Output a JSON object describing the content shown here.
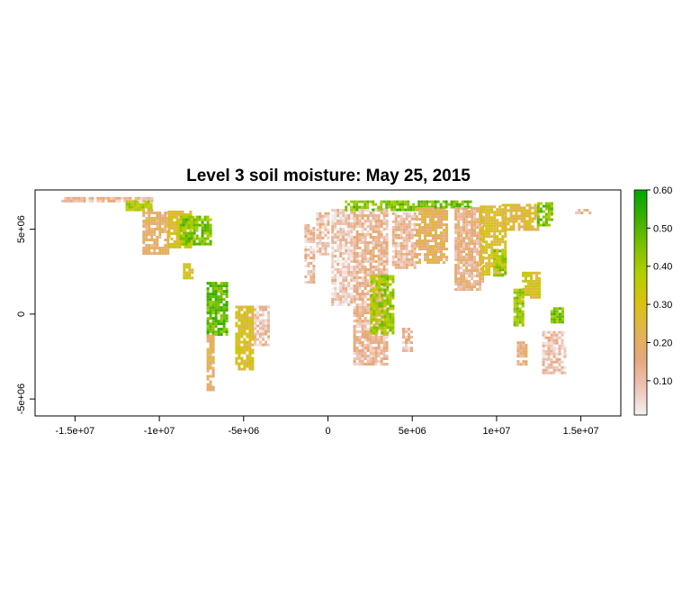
{
  "title": "Level 3 soil moisture: May 25, 2015",
  "x_axis": {
    "ticks": [
      {
        "value": -15000000,
        "label": "-1.5e+07"
      },
      {
        "value": -10000000,
        "label": "-1e+07"
      },
      {
        "value": -5000000,
        "label": "-5e+06"
      },
      {
        "value": 0,
        "label": "0"
      },
      {
        "value": 5000000,
        "label": "5e+06"
      },
      {
        "value": 10000000,
        "label": "1e+07"
      },
      {
        "value": 15000000,
        "label": "1.5e+07"
      }
    ],
    "range": [
      -17367530,
      17367530
    ]
  },
  "y_axis": {
    "ticks": [
      {
        "value": 5000000,
        "label": "5e+06"
      },
      {
        "value": 0,
        "label": "0"
      },
      {
        "value": -5000000,
        "label": "-5e+06"
      }
    ],
    "range": [
      -6000000,
      7314540
    ]
  },
  "legend": {
    "min": 0.01,
    "max": 0.6,
    "ticks": [
      {
        "value": 0.1,
        "label": "0.10"
      },
      {
        "value": 0.2,
        "label": "0.20"
      },
      {
        "value": 0.3,
        "label": "0.30"
      },
      {
        "value": 0.4,
        "label": "0.40"
      },
      {
        "value": 0.5,
        "label": "0.50"
      },
      {
        "value": 0.6,
        "label": "0.60"
      }
    ],
    "colors": [
      "#F2F2F2",
      "#EDC3B3",
      "#E6A77D",
      "#E2B450",
      "#D9C210",
      "#B3CF00",
      "#7DC000",
      "#3DAF00",
      "#00A600"
    ]
  },
  "swaths": [
    {
      "x": [
        -15800000.0,
        -10500000.0
      ],
      "y": [
        6700000.0,
        6900000.0
      ],
      "moisture": 0.12
    },
    {
      "x": [
        -12000000.0,
        -10500000.0
      ],
      "y": [
        6200000.0,
        6700000.0
      ],
      "moisture": 0.38
    },
    {
      "x": [
        -11000000.0,
        -9500000.0
      ],
      "y": [
        3500000.0,
        6200000.0
      ],
      "moisture": 0.18
    },
    {
      "x": [
        -9500000.0,
        -8000000.0
      ],
      "y": [
        4000000.0,
        6100000.0
      ],
      "moisture": 0.3
    },
    {
      "x": [
        -8800000.0,
        -7000000.0
      ],
      "y": [
        4200000.0,
        5800000.0
      ],
      "moisture": 0.45
    },
    {
      "x": [
        -8600000.0,
        -8000000.0
      ],
      "y": [
        2100000.0,
        3000000.0
      ],
      "moisture": 0.3
    },
    {
      "x": [
        -7200000.0,
        -6000000.0
      ],
      "y": [
        -1200000.0,
        1900000.0
      ],
      "moisture": 0.48
    },
    {
      "x": [
        -7200000.0,
        -6800000.0
      ],
      "y": [
        -4500000.0,
        -1200000.0
      ],
      "moisture": 0.2
    },
    {
      "x": [
        -5500000.0,
        -4400000.0
      ],
      "y": [
        -3300000.0,
        500000.0
      ],
      "moisture": 0.28
    },
    {
      "x": [
        -4400000.0,
        -3500000.0
      ],
      "y": [
        -1800000.0,
        500000.0
      ],
      "moisture": 0.08
    },
    {
      "x": [
        -1400000.0,
        -800000.0
      ],
      "y": [
        1800000.0,
        5300000.0
      ],
      "moisture": 0.1
    },
    {
      "x": [
        -700000.0,
        100000.0
      ],
      "y": [
        3500000.0,
        6000000.0
      ],
      "moisture": 0.1
    },
    {
      "x": [
        200000.0,
        1500000.0
      ],
      "y": [
        600000.0,
        6200000.0
      ],
      "moisture": 0.07
    },
    {
      "x": [
        1000000.0,
        6300000.0
      ],
      "y": [
        6200000.0,
        6700000.0
      ],
      "moisture": 0.45
    },
    {
      "x": [
        1500000.0,
        3500000.0
      ],
      "y": [
        -3000000.0,
        6200000.0
      ],
      "moisture": 0.12
    },
    {
      "x": [
        2500000.0,
        3800000.0
      ],
      "y": [
        -1200000.0,
        2300000.0
      ],
      "moisture": 0.4
    },
    {
      "x": [
        3800000.0,
        5200000.0
      ],
      "y": [
        2800000.0,
        6000000.0
      ],
      "moisture": 0.12
    },
    {
      "x": [
        4400000.0,
        4900000.0
      ],
      "y": [
        -2200000.0,
        -800000.0
      ],
      "moisture": 0.1
    },
    {
      "x": [
        5200000.0,
        7000000.0
      ],
      "y": [
        3000000.0,
        6300000.0
      ],
      "moisture": 0.2
    },
    {
      "x": [
        6300000.0,
        8500000.0
      ],
      "y": [
        6300000.0,
        6700000.0
      ],
      "moisture": 0.48
    },
    {
      "x": [
        7500000.0,
        9200000.0
      ],
      "y": [
        1500000.0,
        6300000.0
      ],
      "moisture": 0.15
    },
    {
      "x": [
        9000000.0,
        10500000.0
      ],
      "y": [
        2300000.0,
        6400000.0
      ],
      "moisture": 0.28
    },
    {
      "x": [
        9800000.0,
        10500000.0
      ],
      "y": [
        2300000.0,
        3800000.0
      ],
      "moisture": 0.4
    },
    {
      "x": [
        10300000.0,
        12500000.0
      ],
      "y": [
        5000000.0,
        6500000.0
      ],
      "moisture": 0.25
    },
    {
      "x": [
        11500000.0,
        12500000.0
      ],
      "y": [
        1000000.0,
        2500000.0
      ],
      "moisture": 0.3
    },
    {
      "x": [
        12400000.0,
        13300000.0
      ],
      "y": [
        5200000.0,
        6600000.0
      ],
      "moisture": 0.45
    },
    {
      "x": [
        11000000.0,
        11500000.0
      ],
      "y": [
        -600000.0,
        1500000.0
      ],
      "moisture": 0.4
    },
    {
      "x": [
        11200000.0,
        11800000.0
      ],
      "y": [
        -3000000.0,
        -1600000.0
      ],
      "moisture": 0.15
    },
    {
      "x": [
        13200000.0,
        14000000.0
      ],
      "y": [
        -500000.0,
        400000.0
      ],
      "moisture": 0.45
    },
    {
      "x": [
        12700000.0,
        14000000.0
      ],
      "y": [
        -3400000.0,
        -1000000.0
      ],
      "moisture": 0.08
    },
    {
      "x": [
        14500000.0,
        15500000.0
      ],
      "y": [
        6000000.0,
        6200000.0
      ],
      "moisture": 0.15
    }
  ]
}
